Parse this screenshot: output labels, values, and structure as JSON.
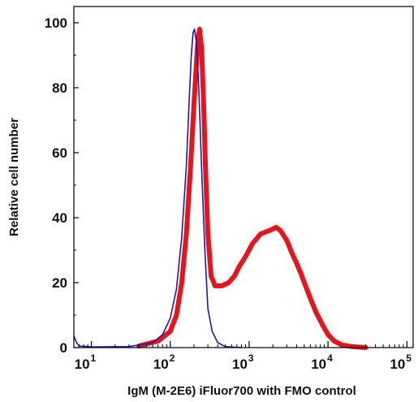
{
  "chart_data": {
    "type": "line",
    "title": "",
    "xlabel": "IgM (M-2E6) iFluor700 with FMO control",
    "ylabel": "Relative cell number",
    "xscale": "log",
    "xlim": [
      6,
      120000
    ],
    "ylim": [
      0,
      105
    ],
    "yticks": [
      0,
      20,
      40,
      60,
      80,
      100
    ],
    "xticks": [
      {
        "value": 10,
        "base": "10",
        "exp": "1"
      },
      {
        "value": 100,
        "base": "10",
        "exp": "2"
      },
      {
        "value": 1000,
        "base": "10",
        "exp": "3"
      },
      {
        "value": 10000,
        "base": "10",
        "exp": "4"
      },
      {
        "value": 100000,
        "base": "10",
        "exp": "5"
      }
    ],
    "grid": false,
    "legend": "none",
    "series": [
      {
        "color": "#e8141c",
        "line_width": 6,
        "points": [
          [
            40,
            0.5
          ],
          [
            70,
            2
          ],
          [
            100,
            5
          ],
          [
            120,
            10
          ],
          [
            140,
            20
          ],
          [
            160,
            35
          ],
          [
            180,
            55
          ],
          [
            200,
            75
          ],
          [
            215,
            88
          ],
          [
            225,
            95
          ],
          [
            235,
            98
          ],
          [
            250,
            92
          ],
          [
            265,
            75
          ],
          [
            280,
            55
          ],
          [
            300,
            35
          ],
          [
            330,
            22
          ],
          [
            370,
            19
          ],
          [
            450,
            19
          ],
          [
            550,
            20
          ],
          [
            650,
            22
          ],
          [
            750,
            25
          ],
          [
            900,
            28
          ],
          [
            1100,
            32
          ],
          [
            1400,
            35
          ],
          [
            1800,
            36
          ],
          [
            2200,
            37
          ],
          [
            2500,
            36
          ],
          [
            3000,
            33
          ],
          [
            3500,
            29
          ],
          [
            4000,
            26
          ],
          [
            4500,
            23
          ],
          [
            5000,
            20
          ],
          [
            6000,
            15
          ],
          [
            7000,
            11
          ],
          [
            8500,
            7
          ],
          [
            10000,
            4
          ],
          [
            12000,
            2
          ],
          [
            15000,
            0.8
          ],
          [
            20000,
            0.3
          ],
          [
            30000,
            0
          ]
        ]
      },
      {
        "color": "#1a1aa8",
        "line_width": 1.6,
        "points": [
          [
            6,
            3.5
          ],
          [
            6.5,
            1.5
          ],
          [
            7,
            0.5
          ],
          [
            10,
            0.2
          ],
          [
            30,
            0.3
          ],
          [
            60,
            1.5
          ],
          [
            80,
            4
          ],
          [
            100,
            9
          ],
          [
            120,
            18
          ],
          [
            140,
            34
          ],
          [
            160,
            56
          ],
          [
            175,
            78
          ],
          [
            185,
            90
          ],
          [
            195,
            97
          ],
          [
            203,
            98
          ],
          [
            215,
            94
          ],
          [
            230,
            80
          ],
          [
            250,
            55
          ],
          [
            275,
            30
          ],
          [
            300,
            12
          ],
          [
            340,
            5
          ],
          [
            400,
            1.5
          ],
          [
            500,
            0.3
          ],
          [
            800,
            0
          ]
        ]
      }
    ]
  }
}
